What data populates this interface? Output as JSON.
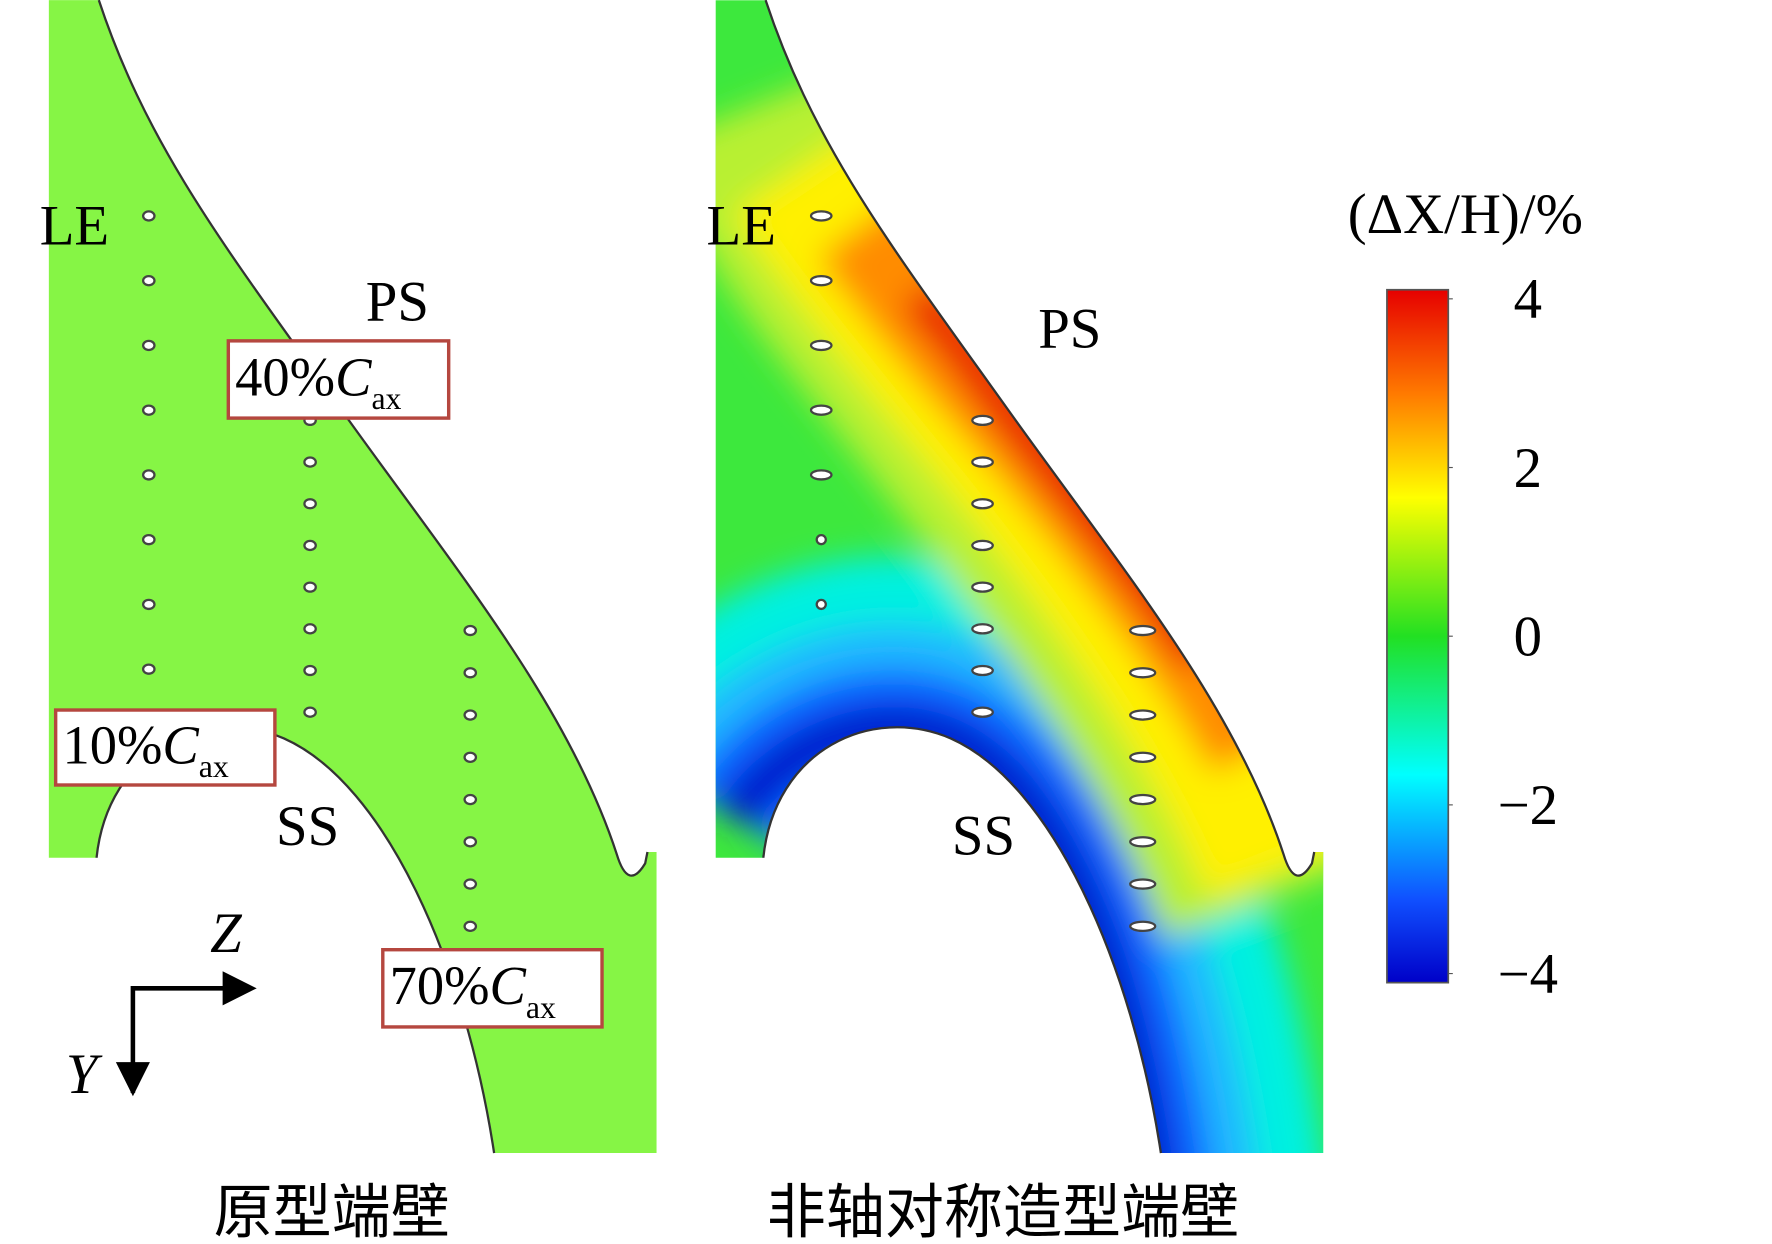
{
  "panels": [
    {
      "caption": "原型端壁",
      "labels": {
        "le": "LE",
        "ps": "PS",
        "ss": "SS"
      },
      "sections": [
        {
          "percent": "40%",
          "symbol": "C",
          "subscript": "ax"
        },
        {
          "percent": "10%",
          "symbol": "C",
          "subscript": "ax"
        },
        {
          "percent": "70%",
          "symbol": "C",
          "subscript": "ax"
        }
      ]
    },
    {
      "caption": "非轴对称造型端壁",
      "labels": {
        "le": "LE",
        "ps": "PS",
        "ss": "SS"
      }
    }
  ],
  "axes": {
    "z": "Z",
    "y": "Y"
  },
  "colorbar": {
    "title": "(ΔX/H)/%",
    "lim": [
      -4,
      4
    ],
    "ticks": [
      4,
      2,
      0,
      {
        "value": -2,
        "label": "−2"
      },
      {
        "value": -4,
        "label": "−4"
      }
    ]
  }
}
